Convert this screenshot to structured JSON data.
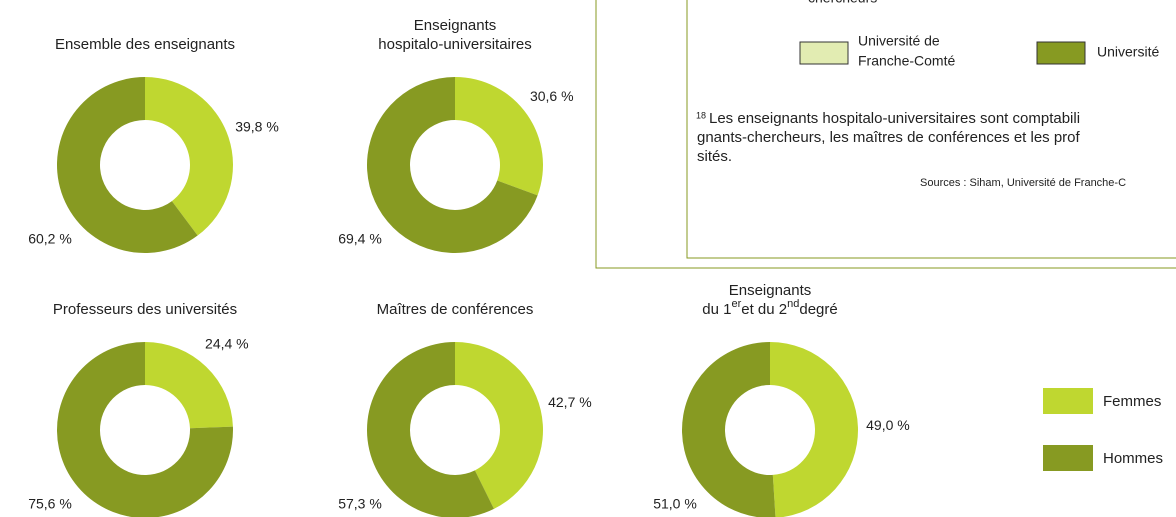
{
  "chart_data": [
    {
      "type": "pie",
      "title": [
        "Ensemble des enseignants"
      ],
      "values": [
        39.8,
        60.2
      ],
      "value_labels": [
        "39,8 %",
        "60,2 %"
      ]
    },
    {
      "type": "pie",
      "title": [
        "Enseignants",
        "hospitalo-universitaires"
      ],
      "values": [
        30.6,
        69.4
      ],
      "value_labels": [
        "30,6 %",
        "69,4 %"
      ]
    },
    {
      "type": "pie",
      "title": [
        "Professeurs des universités"
      ],
      "values": [
        24.4,
        75.6
      ],
      "value_labels": [
        "24,4 %",
        "75,6 %"
      ]
    },
    {
      "type": "pie",
      "title": [
        "Maîtres de conférences"
      ],
      "values": [
        42.7,
        57.3
      ],
      "value_labels": [
        "42,7 %",
        "57,3 %"
      ]
    },
    {
      "type": "pie",
      "title": [
        "Enseignants",
        [
          "du 1",
          "er",
          "et du 2",
          "nd",
          "degré"
        ]
      ],
      "values": [
        49.0,
        51.0
      ],
      "value_labels": [
        "49,0 %",
        "51,0 %"
      ]
    }
  ],
  "legend": {
    "labels": [
      "Femmes",
      "Hommes"
    ],
    "colors": [
      "#bfd730",
      "#879a22"
    ]
  },
  "box": {
    "cut_heading": "chercheurs",
    "legend": [
      {
        "label": [
          "Université de",
          "Franche-Comté"
        ],
        "color": "#e2ecb2"
      },
      {
        "label": [
          "Université"
        ],
        "color": "#879a22"
      }
    ],
    "footnote_number": "18",
    "footnote": [
      "Les enseignants hospitalo-universitaires sont comptabili",
      "gnants-chercheurs, les maîtres de conférences et les prof",
      "sités."
    ],
    "source": "Sources : Siham, Université de Franche-C"
  }
}
